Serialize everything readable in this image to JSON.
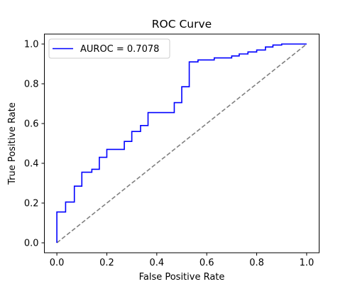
{
  "chart_data": {
    "type": "line",
    "title": "ROC Curve",
    "xlabel": "False Positive Rate",
    "ylabel": "True Positive Rate",
    "xlim": [
      -0.05,
      1.05
    ],
    "ylim": [
      -0.05,
      1.05
    ],
    "xticks": [
      "0.0",
      "0.2",
      "0.4",
      "0.6",
      "0.8",
      "1.0"
    ],
    "yticks": [
      "0.0",
      "0.2",
      "0.4",
      "0.6",
      "0.8",
      "1.0"
    ],
    "grid": false,
    "legend_position": "upper-left",
    "series": [
      {
        "name": "AUROC = 0.7078",
        "color": "#0000ff",
        "style": "solid",
        "x": [
          0.0,
          0.0,
          0.035,
          0.035,
          0.07,
          0.07,
          0.1,
          0.1,
          0.14,
          0.14,
          0.17,
          0.17,
          0.2,
          0.2,
          0.27,
          0.27,
          0.3,
          0.3,
          0.335,
          0.335,
          0.365,
          0.365,
          0.47,
          0.47,
          0.5,
          0.5,
          0.53,
          0.53,
          0.565,
          0.565,
          0.63,
          0.63,
          0.7,
          0.7,
          0.73,
          0.73,
          0.765,
          0.765,
          0.8,
          0.8,
          0.835,
          0.835,
          0.865,
          0.865,
          0.9,
          0.9,
          1.0
        ],
        "y": [
          0.0,
          0.155,
          0.155,
          0.205,
          0.205,
          0.285,
          0.285,
          0.355,
          0.355,
          0.37,
          0.37,
          0.43,
          0.43,
          0.47,
          0.47,
          0.51,
          0.51,
          0.56,
          0.56,
          0.59,
          0.59,
          0.655,
          0.655,
          0.705,
          0.705,
          0.785,
          0.785,
          0.91,
          0.91,
          0.92,
          0.92,
          0.93,
          0.93,
          0.94,
          0.94,
          0.95,
          0.95,
          0.96,
          0.96,
          0.97,
          0.97,
          0.985,
          0.985,
          0.995,
          0.995,
          1.0,
          1.0
        ]
      },
      {
        "name": "",
        "color": "#808080",
        "style": "dashed",
        "x": [
          0.0,
          1.0
        ],
        "y": [
          0.0,
          1.0
        ]
      }
    ]
  }
}
